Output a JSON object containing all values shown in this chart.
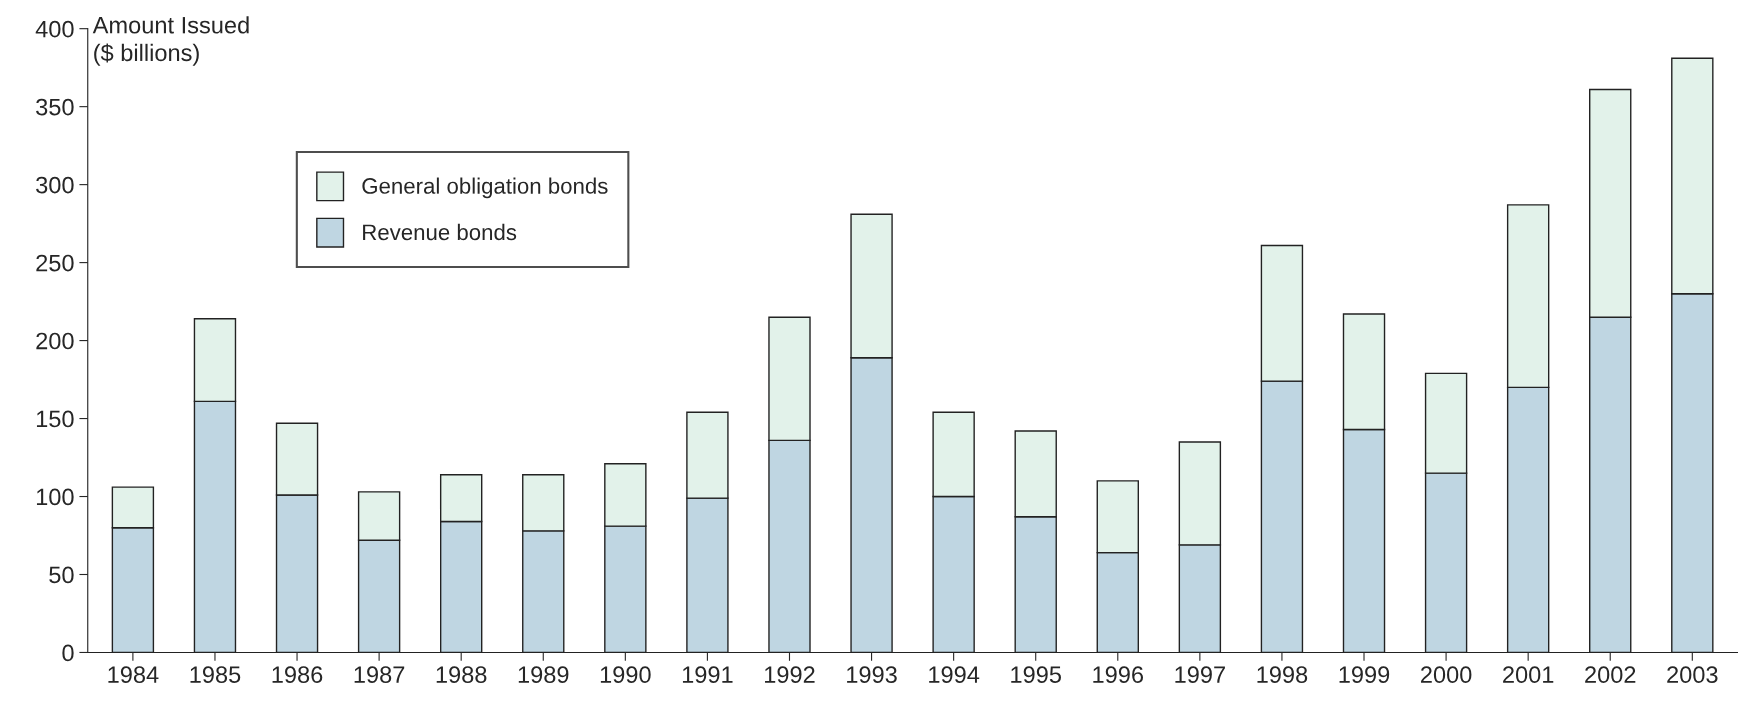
{
  "chart_data": {
    "type": "bar",
    "stacked": true,
    "ylabel": "Amount Issued\n($ billions)",
    "categories": [
      "1984",
      "1985",
      "1986",
      "1987",
      "1988",
      "1989",
      "1990",
      "1991",
      "1992",
      "1993",
      "1994",
      "1995",
      "1996",
      "1997",
      "1998",
      "1999",
      "2000",
      "2001",
      "2002",
      "2003"
    ],
    "series": [
      {
        "name": "Revenue bonds",
        "color": "#bfd6e2",
        "values": [
          80,
          161,
          101,
          72,
          84,
          78,
          81,
          99,
          136,
          189,
          100,
          87,
          64,
          69,
          174,
          143,
          115,
          170,
          215,
          230
        ]
      },
      {
        "name": "General obligation bonds",
        "color": "#e2f2ea",
        "values": [
          26,
          53,
          46,
          31,
          30,
          36,
          40,
          55,
          79,
          92,
          54,
          55,
          46,
          66,
          87,
          74,
          64,
          117,
          146,
          151
        ]
      }
    ],
    "ylim": [
      0,
      400
    ],
    "yticks": [
      0,
      50,
      100,
      150,
      200,
      250,
      300,
      350,
      400
    ],
    "grid": false,
    "legend": "top left"
  }
}
